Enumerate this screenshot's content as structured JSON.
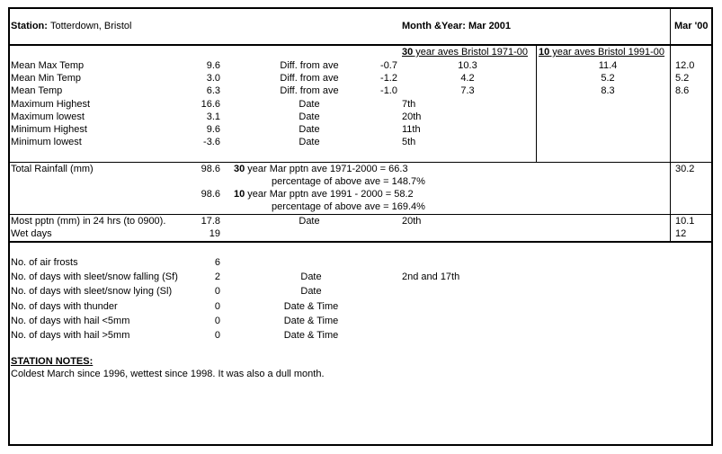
{
  "header": {
    "station_label": "Station:",
    "station_name": "Totterdown, Bristol",
    "month_year": "Month &Year: Mar 2001",
    "prev_year": "Mar '00"
  },
  "ave_headers": {
    "thirty_prefix": "30",
    "thirty_rest": " year aves Bristol 1971-00",
    "ten_prefix": "10",
    "ten_rest": " year aves Bristol 1991-00"
  },
  "temps": [
    {
      "label": "Mean Max Temp",
      "value": "9.6",
      "mid": "Diff. from ave",
      "diff": "-0.7",
      "ave30": "10.3",
      "ave10": "11.4",
      "prev": "12.0"
    },
    {
      "label": "Mean Min Temp",
      "value": "3.0",
      "mid": "Diff. from ave",
      "diff": "-1.2",
      "ave30": "4.2",
      "ave10": "5.2",
      "prev": "5.2"
    },
    {
      "label": "Mean Temp",
      "value": "6.3",
      "mid": "Diff. from ave",
      "diff": "-1.0",
      "ave30": "7.3",
      "ave10": "8.3",
      "prev": "8.6"
    },
    {
      "label": "Maximum Highest",
      "value": "16.6",
      "mid": "Date",
      "date": "7th"
    },
    {
      "label": "Maximum lowest",
      "value": "3.1",
      "mid": "Date",
      "date": "20th"
    },
    {
      "label": "Minimum Highest",
      "value": "9.6",
      "mid": "Date",
      "date": "11th"
    },
    {
      "label": "Minimum lowest",
      "value": "-3.6",
      "mid": "Date",
      "date": "5th"
    }
  ],
  "rain": {
    "label": "Total Rainfall (mm)",
    "value1": "98.6",
    "line1_prefix": "30",
    "line1_rest": " year Mar pptn ave 1971-2000  =  66.3",
    "pct1": "percentage of above ave  =  148.7%",
    "value2": "98.6",
    "line2_prefix": "10",
    "line2_rest": " year Mar pptn ave 1991 - 2000 =  58.2",
    "pct2": "percentage of above ave  =  169.4%",
    "prev": "30.2"
  },
  "most": {
    "label": "Most pptn (mm) in 24 hrs (to 0900).",
    "value": "17.8",
    "mid": "Date",
    "date": "20th",
    "prev": "10.1"
  },
  "wet": {
    "label": "Wet days",
    "value": "19",
    "prev": "12"
  },
  "days": [
    {
      "label": "No. of air frosts",
      "value": "6"
    },
    {
      "label": "No. of days with sleet/snow falling (Sf)",
      "value": "2",
      "mid": "Date",
      "date": "2nd and 17th"
    },
    {
      "label": "No. of days with sleet/snow lying (Sl)",
      "value": "0",
      "mid": "Date"
    },
    {
      "label": "No. of days with thunder",
      "value": "0",
      "mid": "Date & Time"
    },
    {
      "label": "No. of days with hail <5mm",
      "value": "0",
      "mid": "Date & Time"
    },
    {
      "label": "No. of days with hail >5mm",
      "value": "0",
      "mid": "Date & Time"
    }
  ],
  "notes": {
    "title": "STATION NOTES:",
    "text": "Coldest March since 1996, wettest since 1998. It was also a dull month."
  }
}
